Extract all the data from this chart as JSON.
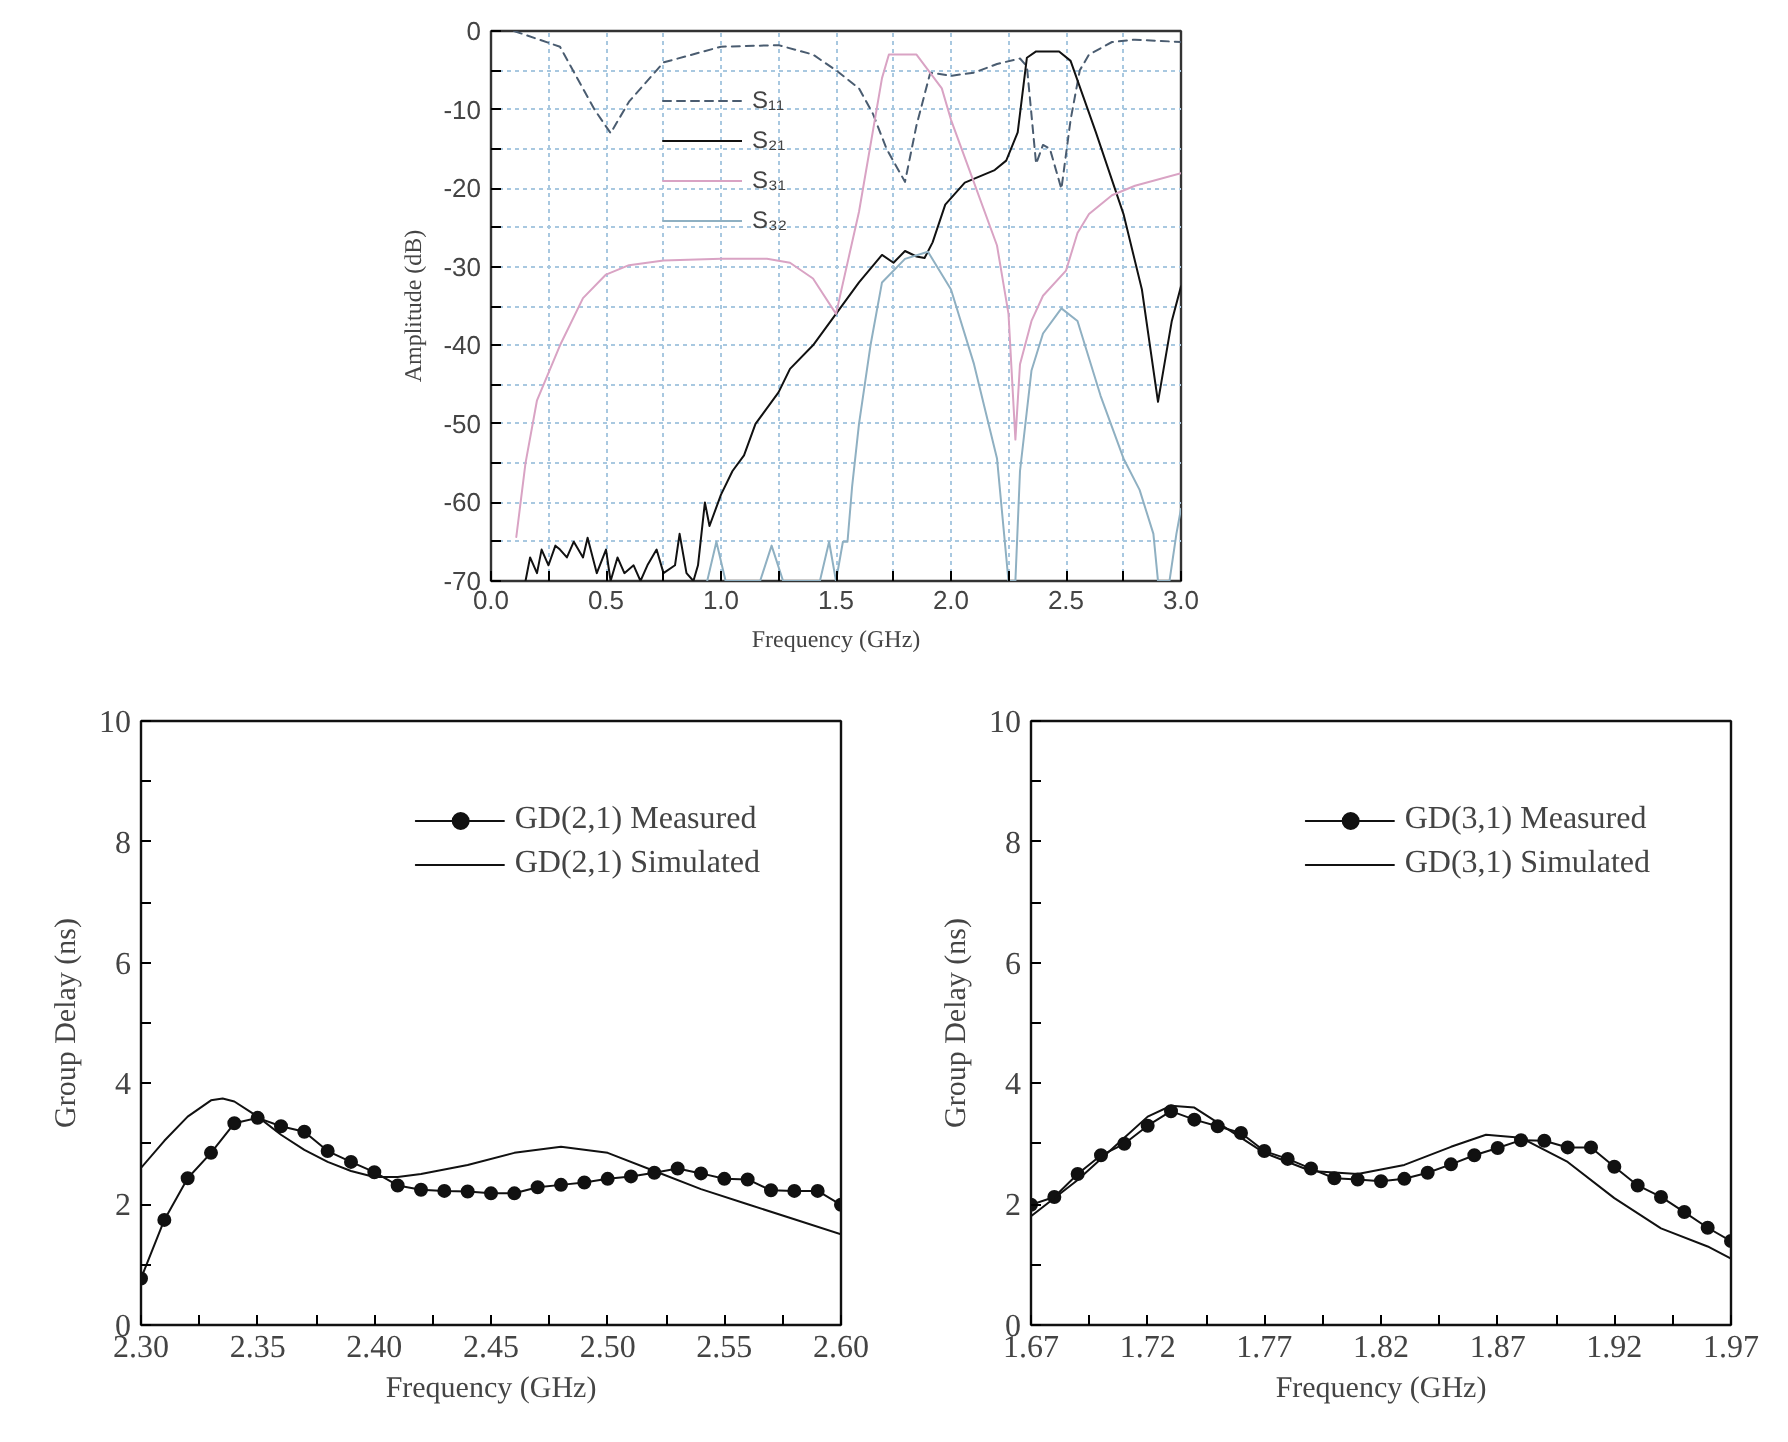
{
  "chart_data": [
    {
      "type": "line",
      "xlabel": "Frequency (GHz)",
      "ylabel": "Amplitude (dB)",
      "xlim": [
        0,
        3
      ],
      "ylim": [
        -70,
        0
      ],
      "xticks": [
        {
          "value": 0,
          "label": "0.0"
        },
        {
          "value": 0.25,
          "label": null
        },
        {
          "value": 0.5,
          "label": "0.5"
        },
        {
          "value": 0.75,
          "label": null
        },
        {
          "value": 1,
          "label": "1.0"
        },
        {
          "value": 1.25,
          "label": null
        },
        {
          "value": 1.5,
          "label": "1.5"
        },
        {
          "value": 1.75,
          "label": null
        },
        {
          "value": 2,
          "label": "2.0"
        },
        {
          "value": 2.25,
          "label": null
        },
        {
          "value": 2.5,
          "label": "2.5"
        },
        {
          "value": 2.75,
          "label": null
        },
        {
          "value": 3,
          "label": "3.0"
        }
      ],
      "yticks": [
        -70,
        {
          "value": -65,
          "label": null
        },
        -60,
        {
          "value": -55,
          "label": null
        },
        -50,
        {
          "value": -45,
          "label": null
        },
        -40,
        {
          "value": -35,
          "label": null
        },
        -30,
        {
          "value": -25,
          "label": null
        },
        -20,
        {
          "value": -15,
          "label": null
        },
        -10,
        {
          "value": -5,
          "label": null
        },
        0
      ],
      "grid": true,
      "legend": "top left",
      "marker": "none",
      "series": [
        {
          "name": "S₁₁",
          "color": "#4a5c70",
          "line_style": "dashed",
          "x": [
            0.1,
            0.3,
            0.45,
            0.52,
            0.6,
            0.75,
            1.0,
            1.25,
            1.4,
            1.5,
            1.6,
            1.66,
            1.72,
            1.8,
            1.85,
            1.91,
            2.0,
            2.1,
            2.2,
            2.3,
            2.33,
            2.37,
            2.4,
            2.43,
            2.48,
            2.52,
            2.56,
            2.6,
            2.7,
            2.8,
            3.0
          ],
          "values": [
            0,
            -2,
            -10,
            -13,
            -9,
            -4,
            -2,
            -1.8,
            -3,
            -5,
            -7.3,
            -10.5,
            -15,
            -19.2,
            -12,
            -5.3,
            -5.7,
            -5.3,
            -4.2,
            -3.5,
            -4.5,
            -16.9,
            -14.5,
            -15,
            -20.1,
            -11.3,
            -5,
            -3,
            -1.4,
            -1.1,
            -1.4
          ]
        },
        {
          "name": "S₂₁",
          "color": "#111111",
          "line_style": "solid",
          "x": [
            0.15,
            0.17,
            0.2,
            0.22,
            0.25,
            0.28,
            0.3,
            0.33,
            0.36,
            0.4,
            0.42,
            0.46,
            0.5,
            0.52,
            0.55,
            0.58,
            0.62,
            0.65,
            0.68,
            0.72,
            0.75,
            0.8,
            0.82,
            0.85,
            0.88,
            0.9,
            0.93,
            0.95,
            1.0,
            1.05,
            1.1,
            1.15,
            1.2,
            1.25,
            1.3,
            1.4,
            1.5,
            1.6,
            1.7,
            1.75,
            1.8,
            1.85,
            1.885,
            1.92,
            1.975,
            2.06,
            2.19,
            2.24,
            2.29,
            2.33,
            2.37,
            2.47,
            2.52,
            2.63,
            2.75,
            2.83,
            2.9,
            2.96,
            3.0
          ],
          "values": [
            -70,
            -67,
            -69,
            -66,
            -68,
            -65.5,
            -66,
            -67,
            -65,
            -67,
            -64.5,
            -69,
            -66,
            -70,
            -67,
            -69,
            -68,
            -70,
            -68,
            -66,
            -69,
            -68,
            -64,
            -69,
            -70,
            -68,
            -60,
            -63,
            -59,
            -56,
            -54,
            -50,
            -48,
            -46,
            -43,
            -40,
            -36,
            -32,
            -28.5,
            -29.5,
            -28,
            -28.7,
            -28.9,
            -26.9,
            -22.1,
            -19.3,
            -17.7,
            -16.5,
            -12.9,
            -3.4,
            -2.6,
            -2.6,
            -3.8,
            -12.9,
            -23.3,
            -32.9,
            -47.2,
            -36.9,
            -32.5
          ]
        },
        {
          "name": "S₃₁",
          "color": "#d9a3c4",
          "line_style": "solid",
          "x": [
            0.11,
            0.15,
            0.2,
            0.3,
            0.4,
            0.5,
            0.6,
            0.75,
            1.0,
            1.2,
            1.3,
            1.4,
            1.5,
            1.6,
            1.7,
            1.73,
            1.85,
            1.96,
            2.0,
            2.1,
            2.2,
            2.25,
            2.28,
            2.3,
            2.35,
            2.4,
            2.5,
            2.55,
            2.6,
            2.7,
            2.8,
            3.0
          ],
          "values": [
            -64.4,
            -55,
            -47,
            -40,
            -34,
            -31,
            -29.8,
            -29.2,
            -29,
            -29,
            -29.5,
            -31.5,
            -36,
            -23,
            -6,
            -3,
            -3,
            -7.3,
            -11.3,
            -19.3,
            -27.3,
            -36,
            -52,
            -42.4,
            -36.9,
            -33.7,
            -30.5,
            -25.7,
            -23.3,
            -20.9,
            -19.7,
            -18.1
          ]
        },
        {
          "name": "S₃₂",
          "color": "#8fb0c2",
          "line_style": "solid",
          "x": [
            0.94,
            0.98,
            1.02,
            1.17,
            1.22,
            1.27,
            1.43,
            1.47,
            1.5,
            1.53,
            1.55,
            1.57,
            1.6,
            1.65,
            1.7,
            1.8,
            1.9,
            2.0,
            2.1,
            2.2,
            2.25,
            2.28,
            2.3,
            2.35,
            2.4,
            2.48,
            2.55,
            2.65,
            2.75,
            2.82,
            2.88,
            2.9,
            2.95,
            2.98,
            3.0
          ],
          "values": [
            -70,
            -65,
            -70,
            -70,
            -65.5,
            -70,
            -70,
            -65,
            -70,
            -65,
            -65,
            -58,
            -50,
            -40,
            -32,
            -29,
            -28.1,
            -32.9,
            -42.4,
            -54.4,
            -70,
            -70,
            -56,
            -43.2,
            -38.5,
            -35.3,
            -36.9,
            -46.4,
            -54.4,
            -58.4,
            -64,
            -70,
            -70,
            -64,
            -60.8
          ]
        }
      ]
    },
    {
      "type": "line",
      "xlabel": "Frequency (GHz)",
      "ylabel": "Group Delay (ns)",
      "xlim": [
        2.3,
        2.6
      ],
      "ylim": [
        0,
        10
      ],
      "xticks": [
        {
          "value": 2.3,
          "label": "2.30"
        },
        {
          "value": 2.325,
          "label": null
        },
        {
          "value": 2.35,
          "label": "2.35"
        },
        {
          "value": 2.375,
          "label": null
        },
        {
          "value": 2.4,
          "label": "2.40"
        },
        {
          "value": 2.425,
          "label": null
        },
        {
          "value": 2.45,
          "label": "2.45"
        },
        {
          "value": 2.475,
          "label": null
        },
        {
          "value": 2.5,
          "label": "2.50"
        },
        {
          "value": 2.525,
          "label": null
        },
        {
          "value": 2.55,
          "label": "2.55"
        },
        {
          "value": 2.575,
          "label": null
        },
        {
          "value": 2.6,
          "label": "2.60"
        }
      ],
      "yticks": [
        0,
        {
          "value": 1,
          "label": null
        },
        2,
        {
          "value": 3,
          "label": null
        },
        4,
        {
          "value": 5,
          "label": null
        },
        6,
        {
          "value": 7,
          "label": null
        },
        8,
        {
          "value": 9,
          "label": null
        },
        10
      ],
      "grid": false,
      "legend": "top right",
      "series": [
        {
          "name": "GD(2,1) Measured",
          "color": "#111111",
          "marker": "circle",
          "x": [
            2.3,
            2.31,
            2.32,
            2.33,
            2.34,
            2.35,
            2.36,
            2.37,
            2.38,
            2.39,
            2.4,
            2.41,
            2.42,
            2.43,
            2.44,
            2.45,
            2.46,
            2.47,
            2.48,
            2.49,
            2.5,
            2.51,
            2.52,
            2.53,
            2.54,
            2.55,
            2.56,
            2.57,
            2.58,
            2.59,
            2.6
          ],
          "values": [
            0.77,
            1.74,
            2.43,
            2.85,
            3.34,
            3.43,
            3.29,
            3.2,
            2.88,
            2.7,
            2.53,
            2.31,
            2.24,
            2.22,
            2.21,
            2.18,
            2.18,
            2.28,
            2.32,
            2.36,
            2.42,
            2.46,
            2.52,
            2.59,
            2.51,
            2.42,
            2.41,
            2.23,
            2.22,
            2.22,
            1.99
          ]
        },
        {
          "name": "GD(2,1) Simulated",
          "color": "#111111",
          "marker": "none",
          "x": [
            2.3,
            2.31,
            2.32,
            2.33,
            2.335,
            2.34,
            2.35,
            2.36,
            2.37,
            2.38,
            2.39,
            2.4,
            2.41,
            2.42,
            2.44,
            2.46,
            2.48,
            2.5,
            2.52,
            2.54,
            2.56,
            2.58,
            2.6
          ],
          "values": [
            2.6,
            3.05,
            3.45,
            3.72,
            3.75,
            3.7,
            3.45,
            3.15,
            2.9,
            2.7,
            2.55,
            2.45,
            2.45,
            2.5,
            2.65,
            2.85,
            2.95,
            2.85,
            2.55,
            2.25,
            2.0,
            1.75,
            1.5
          ]
        }
      ]
    },
    {
      "type": "line",
      "xlabel": "Frequency (GHz)",
      "ylabel": "Group Delay (ns)",
      "xlim": [
        1.67,
        1.97
      ],
      "ylim": [
        0,
        10
      ],
      "xticks": [
        1.67,
        {
          "value": 1.695,
          "label": null
        },
        1.72,
        {
          "value": 1.745,
          "label": null
        },
        1.77,
        {
          "value": 1.795,
          "label": null
        },
        1.82,
        {
          "value": 1.845,
          "label": null
        },
        1.87,
        {
          "value": 1.895,
          "label": null
        },
        1.92,
        {
          "value": 1.945,
          "label": null
        },
        1.97
      ],
      "yticks": [
        0,
        {
          "value": 1,
          "label": null
        },
        2,
        {
          "value": 3,
          "label": null
        },
        4,
        {
          "value": 5,
          "label": null
        },
        6,
        {
          "value": 7,
          "label": null
        },
        8,
        {
          "value": 9,
          "label": null
        },
        10
      ],
      "grid": false,
      "legend": "top right",
      "series": [
        {
          "name": "GD(3,1) Measured",
          "color": "#111111",
          "marker": "circle",
          "x": [
            1.67,
            1.68,
            1.69,
            1.7,
            1.71,
            1.72,
            1.73,
            1.74,
            1.75,
            1.76,
            1.77,
            1.78,
            1.79,
            1.8,
            1.81,
            1.82,
            1.83,
            1.84,
            1.85,
            1.86,
            1.87,
            1.88,
            1.89,
            1.9,
            1.91,
            1.92,
            1.93,
            1.94,
            1.95,
            1.96,
            1.97
          ],
          "values": [
            1.99,
            2.12,
            2.5,
            2.81,
            3.0,
            3.3,
            3.54,
            3.4,
            3.29,
            3.18,
            2.88,
            2.75,
            2.59,
            2.43,
            2.41,
            2.38,
            2.42,
            2.52,
            2.66,
            2.81,
            2.93,
            3.06,
            3.05,
            2.94,
            2.94,
            2.62,
            2.31,
            2.12,
            1.87,
            1.61,
            1.39
          ]
        },
        {
          "name": "GD(3,1) Simulated",
          "color": "#111111",
          "marker": "none",
          "x": [
            1.67,
            1.69,
            1.71,
            1.72,
            1.73,
            1.74,
            1.75,
            1.77,
            1.79,
            1.81,
            1.83,
            1.85,
            1.865,
            1.88,
            1.9,
            1.92,
            1.94,
            1.96,
            1.97
          ],
          "values": [
            1.8,
            2.4,
            3.1,
            3.45,
            3.63,
            3.6,
            3.35,
            2.85,
            2.55,
            2.5,
            2.65,
            2.95,
            3.15,
            3.1,
            2.7,
            2.1,
            1.6,
            1.3,
            1.1
          ]
        }
      ]
    }
  ]
}
